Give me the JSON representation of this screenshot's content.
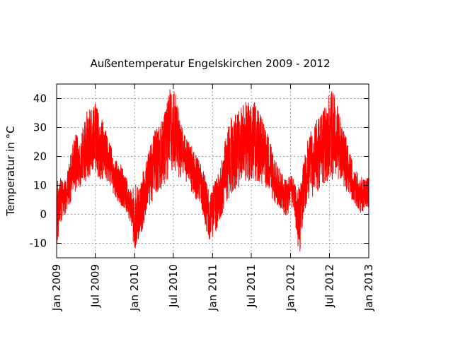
{
  "chart_data": {
    "type": "line",
    "title": "Außentemperatur Engelskirchen  2009 - 2012",
    "xlabel": "",
    "ylabel": "Temperatur in °C",
    "ylim": [
      -15,
      45
    ],
    "xlim": [
      "2009-01-01",
      "2013-01-01"
    ],
    "grid": true,
    "legend": "none",
    "yticks": [
      -10,
      0,
      10,
      20,
      30,
      40
    ],
    "xticks": [
      {
        "date": "2009-01-01",
        "label": "Jan 2009"
      },
      {
        "date": "2009-07-01",
        "label": "Jul 2009"
      },
      {
        "date": "2010-01-01",
        "label": "Jan 2010"
      },
      {
        "date": "2010-07-01",
        "label": "Jul 2010"
      },
      {
        "date": "2011-01-01",
        "label": "Jan 2011"
      },
      {
        "date": "2011-07-01",
        "label": "Jul 2011"
      },
      {
        "date": "2012-01-01",
        "label": "Jan 2012"
      },
      {
        "date": "2012-07-01",
        "label": "Jul 2012"
      },
      {
        "date": "2013-01-01",
        "label": "Jan 2013"
      }
    ],
    "series": [
      {
        "color": "#ff0000",
        "x": [
          "2009-01-01",
          "2009-01-16",
          "2009-02-01",
          "2009-02-16",
          "2009-03-01",
          "2009-03-16",
          "2009-04-01",
          "2009-04-16",
          "2009-05-01",
          "2009-05-16",
          "2009-06-01",
          "2009-06-16",
          "2009-07-01",
          "2009-07-16",
          "2009-08-01",
          "2009-08-16",
          "2009-09-01",
          "2009-09-16",
          "2009-10-01",
          "2009-10-16",
          "2009-11-01",
          "2009-11-16",
          "2009-12-01",
          "2009-12-16",
          "2010-01-01",
          "2010-01-16",
          "2010-02-01",
          "2010-02-16",
          "2010-03-01",
          "2010-03-16",
          "2010-04-01",
          "2010-04-16",
          "2010-05-01",
          "2010-05-16",
          "2010-06-01",
          "2010-06-16",
          "2010-07-01",
          "2010-07-16",
          "2010-08-01",
          "2010-08-16",
          "2010-09-01",
          "2010-09-16",
          "2010-10-01",
          "2010-10-16",
          "2010-11-01",
          "2010-11-16",
          "2010-12-01",
          "2010-12-16",
          "2011-01-01",
          "2011-01-16",
          "2011-02-01",
          "2011-02-16",
          "2011-03-01",
          "2011-03-16",
          "2011-04-01",
          "2011-04-16",
          "2011-05-01",
          "2011-05-16",
          "2011-06-01",
          "2011-06-16",
          "2011-07-01",
          "2011-07-16",
          "2011-08-01",
          "2011-08-16",
          "2011-09-01",
          "2011-09-16",
          "2011-10-01",
          "2011-10-16",
          "2011-11-01",
          "2011-11-16",
          "2011-12-01",
          "2011-12-16",
          "2012-01-01",
          "2012-01-16",
          "2012-02-01",
          "2012-02-16",
          "2012-03-01",
          "2012-03-16",
          "2012-04-01",
          "2012-04-16",
          "2012-05-01",
          "2012-05-16",
          "2012-06-01",
          "2012-06-16",
          "2012-07-01",
          "2012-07-16",
          "2012-08-01",
          "2012-08-16",
          "2012-09-01",
          "2012-09-16",
          "2012-10-01",
          "2012-10-16",
          "2012-11-01",
          "2012-11-16",
          "2012-12-01",
          "2012-12-16",
          "2013-01-01"
        ],
        "min": [
          -13,
          -4,
          -2,
          1,
          3,
          6,
          8,
          9,
          10,
          11,
          12,
          12,
          13,
          12,
          12,
          12,
          10,
          8,
          6,
          4,
          3,
          2,
          -1,
          -6,
          -13,
          -9,
          -7,
          -3,
          1,
          3,
          5,
          7,
          8,
          10,
          11,
          13,
          14,
          14,
          12,
          12,
          11,
          8,
          6,
          4,
          3,
          0,
          -6,
          -9,
          -8,
          -6,
          -3,
          0,
          3,
          5,
          7,
          8,
          9,
          10,
          11,
          11,
          12,
          11,
          11,
          10,
          10,
          8,
          6,
          4,
          3,
          2,
          0,
          -1,
          2,
          1,
          -10,
          -14,
          -1,
          3,
          4,
          6,
          7,
          9,
          10,
          11,
          11,
          12,
          12,
          11,
          10,
          8,
          7,
          4,
          3,
          1,
          0,
          1,
          2
        ],
        "max": [
          12,
          14,
          11,
          13,
          19,
          24,
          28,
          26,
          29,
          35,
          38,
          36,
          39,
          35,
          33,
          30,
          26,
          23,
          19,
          18,
          17,
          14,
          12,
          8,
          10,
          11,
          12,
          17,
          20,
          24,
          29,
          30,
          31,
          35,
          38,
          44,
          43,
          41,
          33,
          30,
          27,
          25,
          23,
          21,
          19,
          16,
          12,
          9,
          11,
          12,
          15,
          20,
          26,
          31,
          34,
          35,
          36,
          37,
          40,
          39,
          38,
          40,
          36,
          34,
          31,
          28,
          24,
          20,
          18,
          15,
          13,
          12,
          14,
          12,
          9,
          10,
          18,
          24,
          29,
          28,
          34,
          35,
          36,
          40,
          42,
          43,
          39,
          35,
          30,
          27,
          22,
          19,
          15,
          14,
          13,
          12,
          13
        ]
      }
    ]
  }
}
